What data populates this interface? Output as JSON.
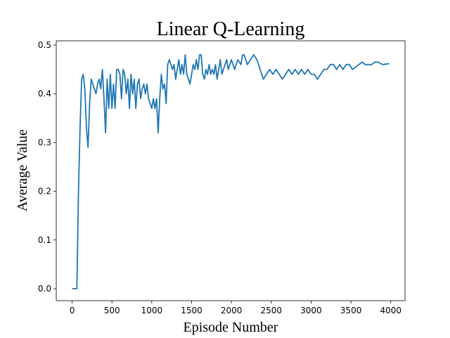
{
  "chart_data": {
    "type": "line",
    "title": "Linear Q-Learning",
    "xlabel": "Episode Number",
    "ylabel": "Average Value",
    "x": [
      0,
      40,
      60,
      80,
      100,
      120,
      140,
      160,
      180,
      200,
      220,
      240,
      260,
      280,
      300,
      320,
      340,
      360,
      380,
      400,
      420,
      440,
      460,
      480,
      500,
      520,
      540,
      560,
      580,
      600,
      620,
      640,
      660,
      680,
      700,
      720,
      740,
      760,
      780,
      800,
      820,
      840,
      860,
      880,
      900,
      920,
      940,
      960,
      980,
      1000,
      1020,
      1040,
      1060,
      1080,
      1100,
      1120,
      1140,
      1160,
      1180,
      1200,
      1220,
      1240,
      1260,
      1280,
      1300,
      1320,
      1340,
      1360,
      1380,
      1400,
      1420,
      1440,
      1460,
      1480,
      1500,
      1520,
      1540,
      1560,
      1580,
      1600,
      1620,
      1640,
      1660,
      1680,
      1700,
      1720,
      1740,
      1760,
      1780,
      1800,
      1820,
      1840,
      1860,
      1880,
      1900,
      1920,
      1940,
      1960,
      1980,
      2000,
      2040,
      2080,
      2120,
      2140,
      2160,
      2200,
      2240,
      2280,
      2320,
      2360,
      2380,
      2400,
      2440,
      2480,
      2520,
      2560,
      2600,
      2640,
      2680,
      2720,
      2760,
      2800,
      2840,
      2880,
      2920,
      2960,
      3000,
      3040,
      3080,
      3120,
      3160,
      3200,
      3240,
      3280,
      3320,
      3360,
      3400,
      3440,
      3480,
      3520,
      3560,
      3600,
      3640,
      3680,
      3720,
      3760,
      3800,
      3840,
      3900,
      3980
    ],
    "series": [
      {
        "name": "Average Value",
        "color": "#1f77b4",
        "values": [
          0,
          0,
          0,
          0.2,
          0.33,
          0.43,
          0.44,
          0.41,
          0.33,
          0.29,
          0.38,
          0.43,
          0.42,
          0.41,
          0.4,
          0.42,
          0.43,
          0.41,
          0.45,
          0.39,
          0.32,
          0.43,
          0.37,
          0.44,
          0.37,
          0.42,
          0.37,
          0.45,
          0.45,
          0.44,
          0.39,
          0.45,
          0.44,
          0.4,
          0.43,
          0.37,
          0.44,
          0.4,
          0.43,
          0.37,
          0.42,
          0.43,
          0.39,
          0.41,
          0.42,
          0.4,
          0.42,
          0.39,
          0.38,
          0.37,
          0.39,
          0.37,
          0.39,
          0.32,
          0.39,
          0.44,
          0.41,
          0.42,
          0.38,
          0.46,
          0.47,
          0.46,
          0.45,
          0.46,
          0.43,
          0.45,
          0.47,
          0.44,
          0.46,
          0.44,
          0.48,
          0.44,
          0.43,
          0.42,
          0.44,
          0.46,
          0.45,
          0.47,
          0.45,
          0.48,
          0.48,
          0.44,
          0.43,
          0.45,
          0.44,
          0.46,
          0.44,
          0.45,
          0.44,
          0.46,
          0.43,
          0.45,
          0.47,
          0.44,
          0.45,
          0.46,
          0.47,
          0.45,
          0.46,
          0.47,
          0.45,
          0.47,
          0.46,
          0.48,
          0.48,
          0.46,
          0.47,
          0.48,
          0.47,
          0.45,
          0.44,
          0.43,
          0.44,
          0.45,
          0.44,
          0.45,
          0.44,
          0.43,
          0.44,
          0.45,
          0.44,
          0.45,
          0.44,
          0.45,
          0.44,
          0.45,
          0.44,
          0.44,
          0.43,
          0.44,
          0.45,
          0.45,
          0.46,
          0.46,
          0.45,
          0.46,
          0.45,
          0.46,
          0.46,
          0.45,
          0.455,
          0.46,
          0.465,
          0.46,
          0.46,
          0.46,
          0.465,
          0.465,
          0.46,
          0.462
        ]
      }
    ],
    "xlim": [
      -199,
      4179
    ],
    "xticks": [
      0,
      500,
      1000,
      1500,
      2000,
      2500,
      3000,
      3500,
      4000
    ],
    "ylim": [
      -0.0246,
      0.5087
    ],
    "yticks": [
      {
        "value": 0,
        "label": "0.0"
      },
      0.1,
      0.2,
      0.3,
      0.4,
      0.5
    ]
  }
}
